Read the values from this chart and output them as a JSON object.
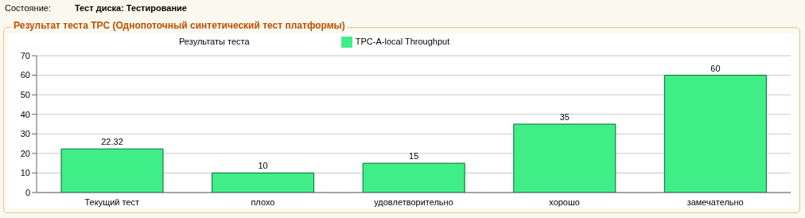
{
  "chart_data": {
    "type": "bar",
    "title": "Результат теста TPC (Однопоточный синтетический тест платформы)",
    "subtitle": "Результаты теста",
    "annotations": [
      "Состояние:",
      "Тест диска: Тестирование"
    ],
    "categories": [
      "Текущий тест",
      "плохо",
      "удовлетворительно",
      "хорошо",
      "замечательно"
    ],
    "series": [
      {
        "name": "TPC-A-local Throughput",
        "color": "#40ee88",
        "values": [
          22.32,
          10,
          15,
          35,
          60
        ]
      }
    ],
    "ylim": [
      0,
      70
    ],
    "yticks": [
      0,
      10,
      20,
      30,
      40,
      50,
      60,
      70
    ],
    "grid": "y",
    "legend": "top",
    "data_labels": true
  }
}
